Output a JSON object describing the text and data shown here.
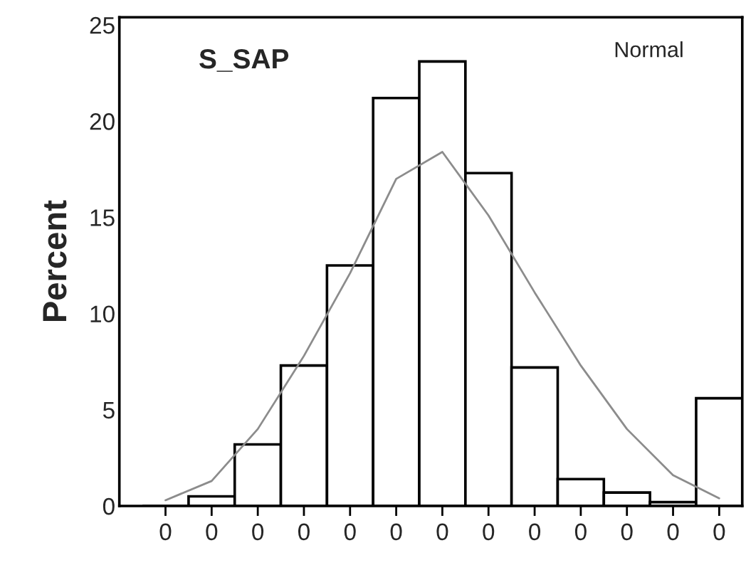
{
  "chart_data": {
    "type": "bar",
    "title": "S_SAP",
    "ylabel": "Percent",
    "categories": [
      "0",
      "0",
      "0",
      "0",
      "0",
      "0",
      "0",
      "0",
      "0",
      "0",
      "0",
      "0",
      "0"
    ],
    "series": [
      {
        "color": "#ffffff",
        "values": [
          0,
          0.5,
          3.2,
          7.3,
          12.5,
          21.2,
          23.1,
          17.3,
          7.2,
          1.4,
          0.7,
          0.2,
          5.6
        ]
      },
      {
        "type": "line",
        "color": "#8c8c8c",
        "values": [
          0.3,
          1.3,
          4.0,
          7.8,
          12.1,
          17.0,
          18.4,
          15.1,
          11.1,
          7.3,
          4.0,
          1.6,
          0.4
        ]
      }
    ],
    "annotations": [
      "Normal"
    ],
    "ylim": [
      0,
      25.4
    ],
    "yticks": [
      0,
      5,
      10,
      15,
      20,
      25
    ],
    "grid": false,
    "legend": false
  }
}
